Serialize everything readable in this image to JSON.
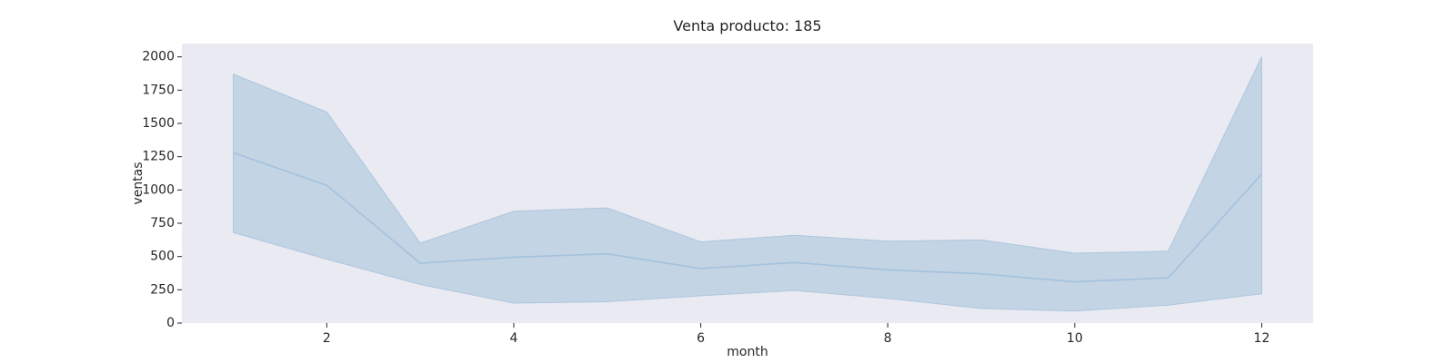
{
  "chart_data": {
    "type": "line",
    "title": "Venta producto: 185",
    "xlabel": "month",
    "ylabel": "ventas",
    "x": [
      1,
      2,
      3,
      4,
      5,
      6,
      7,
      8,
      9,
      10,
      11,
      12
    ],
    "series": [
      {
        "values": [
          1280,
          1035,
          450,
          495,
          520,
          410,
          455,
          400,
          370,
          310,
          340,
          1120
        ],
        "band_lower": [
          680,
          480,
          290,
          150,
          160,
          205,
          245,
          185,
          110,
          90,
          135,
          220
        ],
        "band_upper": [
          1870,
          1585,
          600,
          840,
          865,
          610,
          660,
          615,
          625,
          525,
          540,
          2000
        ]
      }
    ],
    "xlim": [
      0.45,
      12.55
    ],
    "ylim": [
      0,
      2100
    ],
    "xticks": [
      2,
      4,
      6,
      8,
      10,
      12
    ],
    "yticks": [
      0,
      250,
      500,
      750,
      1000,
      1250,
      1500,
      1750,
      2000
    ],
    "grid": false,
    "colors": {
      "background": "#eaeaf2",
      "line": "#a4c2dc",
      "band_fill": "#a9c4dc",
      "text": "#262626"
    }
  }
}
